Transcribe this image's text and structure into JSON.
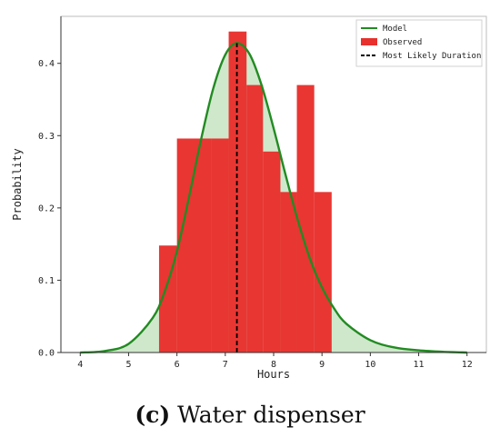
{
  "caption": {
    "label": "(c)",
    "text": "Water dispenser"
  },
  "chart_data": {
    "type": "bar",
    "title": "",
    "xlabel": "Hours",
    "ylabel": "Probability",
    "xlim": [
      3.6,
      12.4
    ],
    "ylim": [
      0,
      0.465
    ],
    "xticks": [
      4,
      5,
      6,
      7,
      8,
      9,
      10,
      11,
      12
    ],
    "xtick_labels": [
      "4",
      "5",
      "6",
      "7",
      "8",
      "9",
      "10",
      "11",
      "12"
    ],
    "yticks": [
      0.0,
      0.1,
      0.2,
      0.3,
      0.4
    ],
    "ytick_labels": [
      "0.0",
      "0.1",
      "0.2",
      "0.3",
      "0.4"
    ],
    "grid": false,
    "legend": {
      "placement": "top-right",
      "entries": [
        {
          "name": "Model",
          "kind": "line",
          "color": "#228b22"
        },
        {
          "name": "Observed",
          "kind": "patch",
          "color": "#e8302c"
        },
        {
          "name": "Most Likely Duration",
          "kind": "dashed-line",
          "color": "#000000"
        }
      ]
    },
    "observed_histogram": {
      "name": "Observed",
      "color": "#e8302c",
      "bins": [
        {
          "x0": 5.63,
          "x1": 6.0,
          "value": 0.148
        },
        {
          "x0": 6.0,
          "x1": 6.72,
          "value": 0.296
        },
        {
          "x0": 6.72,
          "x1": 7.07,
          "value": 0.296
        },
        {
          "x0": 7.07,
          "x1": 7.44,
          "value": 0.444
        },
        {
          "x0": 7.44,
          "x1": 7.78,
          "value": 0.37
        },
        {
          "x0": 7.78,
          "x1": 8.14,
          "value": 0.278
        },
        {
          "x0": 8.14,
          "x1": 8.48,
          "value": 0.222
        },
        {
          "x0": 8.48,
          "x1": 8.84,
          "value": 0.37
        },
        {
          "x0": 8.84,
          "x1": 9.2,
          "value": 0.222
        }
      ]
    },
    "model_curve": {
      "name": "Model",
      "color": "#228b22",
      "fill": "#cfe8cc",
      "x": [
        4.0,
        4.5,
        5.0,
        5.5,
        5.75,
        6.0,
        6.25,
        6.5,
        6.75,
        7.0,
        7.24,
        7.5,
        7.75,
        8.0,
        8.25,
        8.5,
        8.75,
        9.0,
        9.25,
        9.5,
        10.0,
        10.5,
        11.0,
        11.5,
        12.0
      ],
      "y": [
        0.0,
        0.002,
        0.012,
        0.048,
        0.085,
        0.14,
        0.215,
        0.295,
        0.365,
        0.412,
        0.428,
        0.413,
        0.37,
        0.31,
        0.245,
        0.183,
        0.13,
        0.09,
        0.061,
        0.04,
        0.017,
        0.007,
        0.003,
        0.001,
        0.0
      ]
    },
    "most_likely_duration": {
      "name": "Most Likely Duration",
      "x": 7.24,
      "y": 0.428,
      "color": "#000000"
    }
  }
}
